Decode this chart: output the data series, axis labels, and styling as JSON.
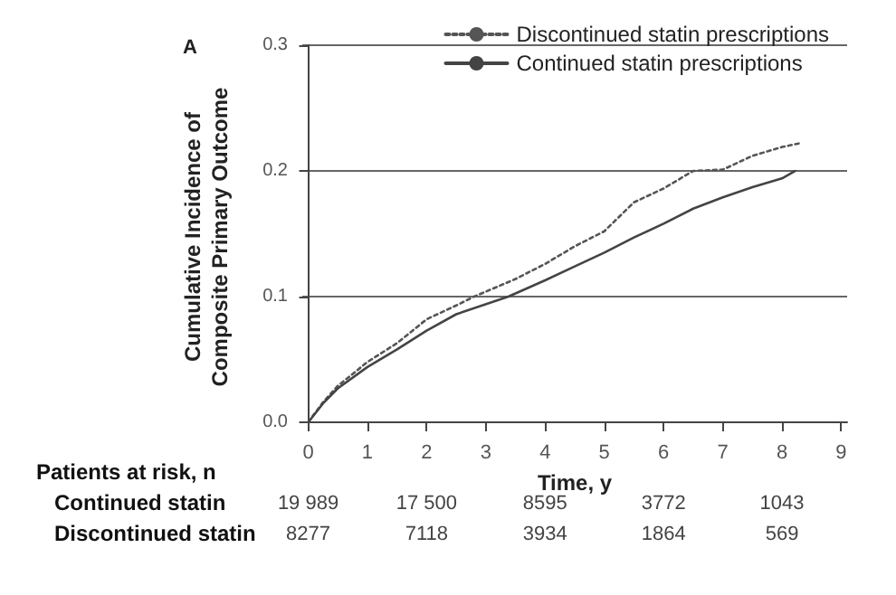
{
  "chart_data": {
    "type": "line",
    "title": "A",
    "xlabel": "Time, y",
    "ylabel": "Cumulative Incidence of\nComposite Primary Outcome",
    "xlim": [
      -0.1,
      9.1
    ],
    "xticks": [
      0,
      1,
      2,
      3,
      4,
      5,
      6,
      7,
      8,
      9
    ],
    "ylim": [
      -0.005,
      0.3
    ],
    "yticks": [
      {
        "value": 0,
        "label": "0.0"
      },
      0.1,
      0.2,
      0.3
    ],
    "grid": "y",
    "legend": "top right",
    "marker": "none",
    "series": [
      {
        "name": "Discontinued statin prescriptions",
        "color": "#555555",
        "line_style": "dotted",
        "x": [
          0,
          0.25,
          0.5,
          1,
          1.5,
          2,
          2.5,
          2.8,
          3.5,
          4,
          4.5,
          5,
          5.5,
          6,
          6.5,
          7,
          7.5,
          8,
          8.3
        ],
        "values": [
          0,
          0.016,
          0.029,
          0.048,
          0.063,
          0.082,
          0.093,
          0.1,
          0.114,
          0.126,
          0.14,
          0.152,
          0.175,
          0.186,
          0.2,
          0.201,
          0.212,
          0.219,
          0.222
        ]
      },
      {
        "name": "Continued statin prescriptions",
        "color": "#444444",
        "line_style": "solid",
        "x": [
          0,
          0.25,
          0.5,
          1,
          1.5,
          2,
          2.5,
          3.38,
          4,
          4.5,
          5,
          5.5,
          6,
          6.5,
          7,
          7.5,
          8,
          8.22
        ],
        "values": [
          0,
          0.015,
          0.027,
          0.044,
          0.058,
          0.073,
          0.086,
          0.1,
          0.113,
          0.124,
          0.135,
          0.147,
          0.158,
          0.17,
          0.179,
          0.187,
          0.194,
          0.2
        ]
      }
    ],
    "annotations": [
      "Patients at risk, n",
      "Continued statin",
      "19 989",
      "17 500",
      "8595",
      "3772",
      "1043",
      "Discontinued statin",
      "8277",
      "7118",
      "3934",
      "1864",
      "569"
    ]
  }
}
